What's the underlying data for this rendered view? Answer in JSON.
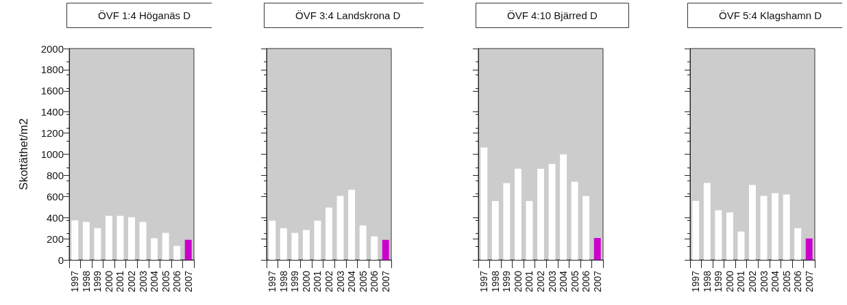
{
  "chart_data": [
    {
      "type": "bar",
      "title": "ÖVF 1:4 Höganäs D",
      "ylabel": "Skottäthet/m2",
      "categories": [
        "1997",
        "1998",
        "1999",
        "2000",
        "2001",
        "2002",
        "2003",
        "2004",
        "2005",
        "2006",
        "2007"
      ],
      "values": [
        374,
        359,
        300,
        417,
        417,
        404,
        359,
        205,
        255,
        132,
        190
      ],
      "colors": [
        "#ffffff",
        "#ffffff",
        "#ffffff",
        "#ffffff",
        "#ffffff",
        "#ffffff",
        "#ffffff",
        "#ffffff",
        "#ffffff",
        "#ffffff",
        "#cc00cc"
      ],
      "ylim": [
        0,
        2000
      ],
      "yticks": [
        0,
        200,
        400,
        600,
        800,
        1000,
        1200,
        1400,
        1600,
        1800,
        2000
      ]
    },
    {
      "type": "bar",
      "title": "ÖVF 3:4 Landskrona D",
      "categories": [
        "1997",
        "1998",
        "1999",
        "2000",
        "2001",
        "2002",
        "2003",
        "2004",
        "2005",
        "2006",
        "2007"
      ],
      "values": [
        371,
        300,
        255,
        283,
        371,
        495,
        605,
        663,
        326,
        222,
        190
      ],
      "colors": [
        "#ffffff",
        "#ffffff",
        "#ffffff",
        "#ffffff",
        "#ffffff",
        "#ffffff",
        "#ffffff",
        "#ffffff",
        "#ffffff",
        "#ffffff",
        "#cc00cc"
      ],
      "ylim": [
        0,
        2000
      ],
      "yticks": [
        0,
        200,
        400,
        600,
        800,
        1000,
        1200,
        1400,
        1600,
        1800,
        2000
      ],
      "tick_labels": "x"
    },
    {
      "type": "bar",
      "title": "ÖVF 4:10 Bjärred D",
      "categories": [
        "1997",
        "1998",
        "1999",
        "2000",
        "2001",
        "2002",
        "2003",
        "2004",
        "2005",
        "2006",
        "2007"
      ],
      "values": [
        1063,
        557,
        726,
        862,
        557,
        862,
        907,
        998,
        739,
        603,
        207
      ],
      "colors": [
        "#ffffff",
        "#ffffff",
        "#ffffff",
        "#ffffff",
        "#ffffff",
        "#ffffff",
        "#ffffff",
        "#ffffff",
        "#ffffff",
        "#ffffff",
        "#cc00cc"
      ],
      "ylim": [
        0,
        2000
      ],
      "yticks": [
        0,
        200,
        400,
        600,
        800,
        1000,
        1200,
        1400,
        1600,
        1800,
        2000
      ],
      "tick_labels": "x"
    },
    {
      "type": "bar",
      "title": "ÖVF 5:4 Klagshamn D",
      "categories": [
        "1997",
        "1998",
        "1999",
        "2000",
        "2001",
        "2002",
        "2003",
        "2004",
        "2005",
        "2006",
        "2007"
      ],
      "values": [
        559,
        728,
        469,
        449,
        268,
        708,
        605,
        631,
        618,
        300,
        203
      ],
      "colors": [
        "#ffffff",
        "#ffffff",
        "#ffffff",
        "#ffffff",
        "#ffffff",
        "#ffffff",
        "#ffffff",
        "#ffffff",
        "#ffffff",
        "#ffffff",
        "#cc00cc"
      ],
      "ylim": [
        0,
        2000
      ],
      "yticks": [
        0,
        200,
        400,
        600,
        800,
        1000,
        1200,
        1400,
        1600,
        1800,
        2000
      ],
      "tick_labels": "x"
    }
  ]
}
